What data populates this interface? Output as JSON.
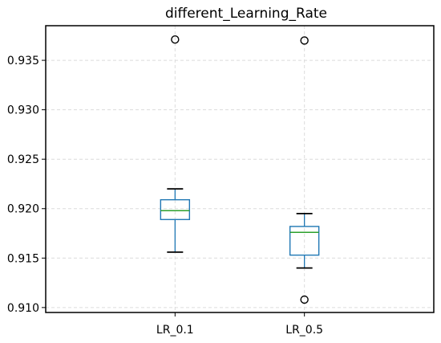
{
  "chart_data": {
    "type": "boxplot",
    "title": "different_Learning_Rate",
    "xlabel": "",
    "ylabel": "",
    "categories": [
      "LR_0.1",
      "LR_0.5"
    ],
    "series": [
      {
        "category": "LR_0.1",
        "whisker_low": 0.9156,
        "q1": 0.9189,
        "median": 0.9198,
        "q3": 0.9209,
        "whisker_high": 0.922,
        "outliers": [
          0.9371
        ]
      },
      {
        "category": "LR_0.5",
        "whisker_low": 0.914,
        "q1": 0.9153,
        "median": 0.9176,
        "q3": 0.9182,
        "whisker_high": 0.9195,
        "outliers": [
          0.937,
          0.9108
        ]
      }
    ],
    "ylim": [
      0.9095,
      0.9385
    ],
    "yticks": [
      "0.910",
      "0.915",
      "0.920",
      "0.925",
      "0.930",
      "0.935"
    ],
    "grid": true,
    "colors": {
      "box": "#1f77b4",
      "median": "#2ca02c",
      "whisker": "#000000",
      "grid": "#dcdcdc",
      "frame": "#000000"
    }
  }
}
